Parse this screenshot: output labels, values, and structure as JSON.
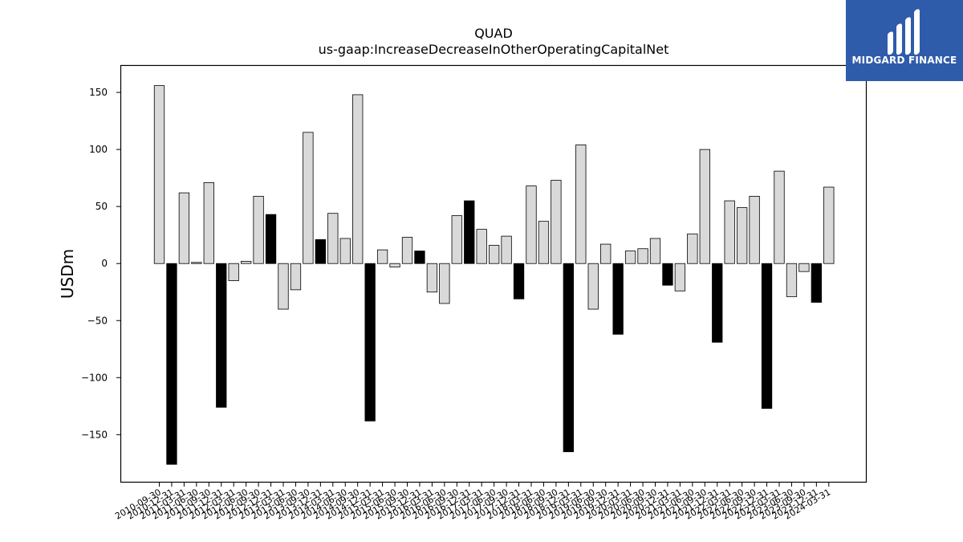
{
  "chart_data": {
    "type": "bar",
    "title": "QUAD",
    "subtitle": "us-gaap:IncreaseDecreaseInOtherOperatingCapitalNet",
    "xlabel": "",
    "ylabel": "USDm",
    "ylim": [
      -192,
      174
    ],
    "yticks": [
      150,
      100,
      50,
      0,
      -50,
      -100,
      -150
    ],
    "grid": false,
    "categories": [
      "2010-09-30",
      "2010-12-31",
      "2011-03-31",
      "2011-06-30",
      "2011-09-30",
      "2011-12-31",
      "2012-03-31",
      "2012-06-30",
      "2012-09-30",
      "2012-12-31",
      "2013-03-31",
      "2013-06-30",
      "2013-09-30",
      "2013-12-31",
      "2014-03-31",
      "2014-06-30",
      "2014-09-30",
      "2014-12-31",
      "2015-03-31",
      "2015-06-30",
      "2015-09-30",
      "2015-12-31",
      "2016-03-31",
      "2016-06-30",
      "2016-09-30",
      "2016-12-31",
      "2017-03-31",
      "2017-06-30",
      "2017-09-30",
      "2017-12-31",
      "2018-03-31",
      "2018-06-30",
      "2018-09-30",
      "2018-12-31",
      "2019-03-31",
      "2019-06-30",
      "2019-09-30",
      "2019-12-31",
      "2020-03-31",
      "2020-06-30",
      "2020-09-30",
      "2020-12-31",
      "2021-03-31",
      "2021-06-30",
      "2021-09-30",
      "2021-12-31",
      "2022-03-31",
      "2022-06-30",
      "2022-09-30",
      "2022-12-31",
      "2023-03-31",
      "2023-06-30",
      "2023-09-30",
      "2023-12-31",
      "2024-03-31"
    ],
    "values": [
      156,
      -176,
      62,
      1,
      71,
      -126,
      -15,
      2,
      59,
      43,
      -40,
      -23,
      115,
      21,
      44,
      22,
      148,
      -138,
      12,
      -3,
      23,
      11,
      -25,
      -35,
      42,
      55,
      30,
      16,
      24,
      -31,
      68,
      37,
      73,
      -165,
      104,
      -40,
      17,
      -62,
      11,
      13,
      22,
      -19,
      -24,
      26,
      100,
      -69,
      55,
      49,
      59,
      -127,
      81,
      -29,
      -7,
      -34,
      67
    ],
    "highlight": [
      false,
      true,
      false,
      false,
      false,
      true,
      false,
      false,
      false,
      true,
      false,
      false,
      false,
      true,
      false,
      false,
      false,
      true,
      false,
      false,
      false,
      true,
      false,
      false,
      false,
      true,
      false,
      false,
      false,
      true,
      false,
      false,
      false,
      true,
      false,
      false,
      false,
      true,
      false,
      false,
      false,
      true,
      false,
      false,
      false,
      true,
      false,
      false,
      false,
      true,
      false,
      false,
      false,
      true,
      false
    ],
    "colors": {
      "bar": "#d9d9d9",
      "highlight": "#000000",
      "edge": "#000000"
    }
  },
  "logo": {
    "text": "MIDGARD FINANCE",
    "background": "#2f5bab",
    "foreground": "#ffffff"
  }
}
